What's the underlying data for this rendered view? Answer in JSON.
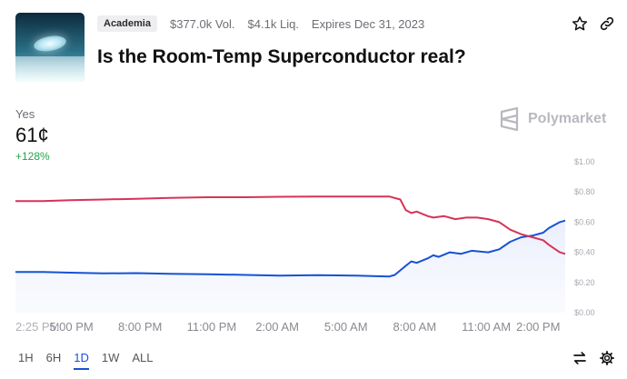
{
  "market": {
    "category": "Academia",
    "volume": "$377.0k Vol.",
    "liquidity": "$4.1k Liq.",
    "expires": "Expires Dec 31, 2023",
    "title": "Is the Room-Temp Superconductor real?"
  },
  "outcome": {
    "label": "Yes",
    "price": "61¢",
    "change": "+128%"
  },
  "brand": {
    "name": "Polymarket"
  },
  "icons": {
    "favorite": "star-icon",
    "share": "link-icon",
    "swap": "swap-arrows-icon",
    "settings": "gear-icon"
  },
  "ranges": [
    "1H",
    "6H",
    "1D",
    "1W",
    "ALL"
  ],
  "selected_range": "1D",
  "colors": {
    "yes_line": "#1652d4",
    "no_line": "#d63358",
    "accent": "#1652d4",
    "positive": "#22a34a"
  },
  "chart_data": {
    "type": "line",
    "x_ticks": [
      "2:25 PM",
      "5:00 PM",
      "8:00 PM",
      "11:00 PM",
      "2:00 AM",
      "5:00 AM",
      "8:00 AM",
      "11:00 AM",
      "2:00 PM"
    ],
    "y_ticks": [
      "$1.00",
      "$0.80",
      "$0.60",
      "$0.40",
      "$0.20",
      "$0.00"
    ],
    "ylim": [
      0,
      1
    ],
    "series": [
      {
        "color": "#1652d4",
        "points": [
          [
            0,
            0.27
          ],
          [
            0.05,
            0.27
          ],
          [
            0.1,
            0.265
          ],
          [
            0.16,
            0.26
          ],
          [
            0.22,
            0.262
          ],
          [
            0.28,
            0.258
          ],
          [
            0.35,
            0.255
          ],
          [
            0.42,
            0.25
          ],
          [
            0.48,
            0.245
          ],
          [
            0.55,
            0.248
          ],
          [
            0.62,
            0.245
          ],
          [
            0.68,
            0.24
          ],
          [
            0.69,
            0.25
          ],
          [
            0.71,
            0.31
          ],
          [
            0.72,
            0.34
          ],
          [
            0.73,
            0.33
          ],
          [
            0.75,
            0.36
          ],
          [
            0.76,
            0.38
          ],
          [
            0.77,
            0.37
          ],
          [
            0.79,
            0.4
          ],
          [
            0.81,
            0.39
          ],
          [
            0.83,
            0.41
          ],
          [
            0.86,
            0.4
          ],
          [
            0.88,
            0.42
          ],
          [
            0.9,
            0.47
          ],
          [
            0.92,
            0.5
          ],
          [
            0.94,
            0.51
          ],
          [
            0.96,
            0.53
          ],
          [
            0.97,
            0.56
          ],
          [
            0.99,
            0.6
          ],
          [
            1.0,
            0.61
          ]
        ]
      },
      {
        "color": "#d63358",
        "points": [
          [
            0,
            0.74
          ],
          [
            0.05,
            0.74
          ],
          [
            0.1,
            0.745
          ],
          [
            0.16,
            0.75
          ],
          [
            0.22,
            0.755
          ],
          [
            0.28,
            0.76
          ],
          [
            0.35,
            0.765
          ],
          [
            0.42,
            0.765
          ],
          [
            0.48,
            0.768
          ],
          [
            0.55,
            0.77
          ],
          [
            0.62,
            0.77
          ],
          [
            0.68,
            0.77
          ],
          [
            0.7,
            0.75
          ],
          [
            0.71,
            0.68
          ],
          [
            0.72,
            0.66
          ],
          [
            0.73,
            0.67
          ],
          [
            0.75,
            0.64
          ],
          [
            0.76,
            0.63
          ],
          [
            0.78,
            0.64
          ],
          [
            0.8,
            0.62
          ],
          [
            0.82,
            0.63
          ],
          [
            0.84,
            0.63
          ],
          [
            0.86,
            0.62
          ],
          [
            0.88,
            0.6
          ],
          [
            0.9,
            0.55
          ],
          [
            0.92,
            0.52
          ],
          [
            0.94,
            0.5
          ],
          [
            0.96,
            0.48
          ],
          [
            0.97,
            0.45
          ],
          [
            0.99,
            0.4
          ],
          [
            1.0,
            0.39
          ]
        ]
      }
    ]
  }
}
